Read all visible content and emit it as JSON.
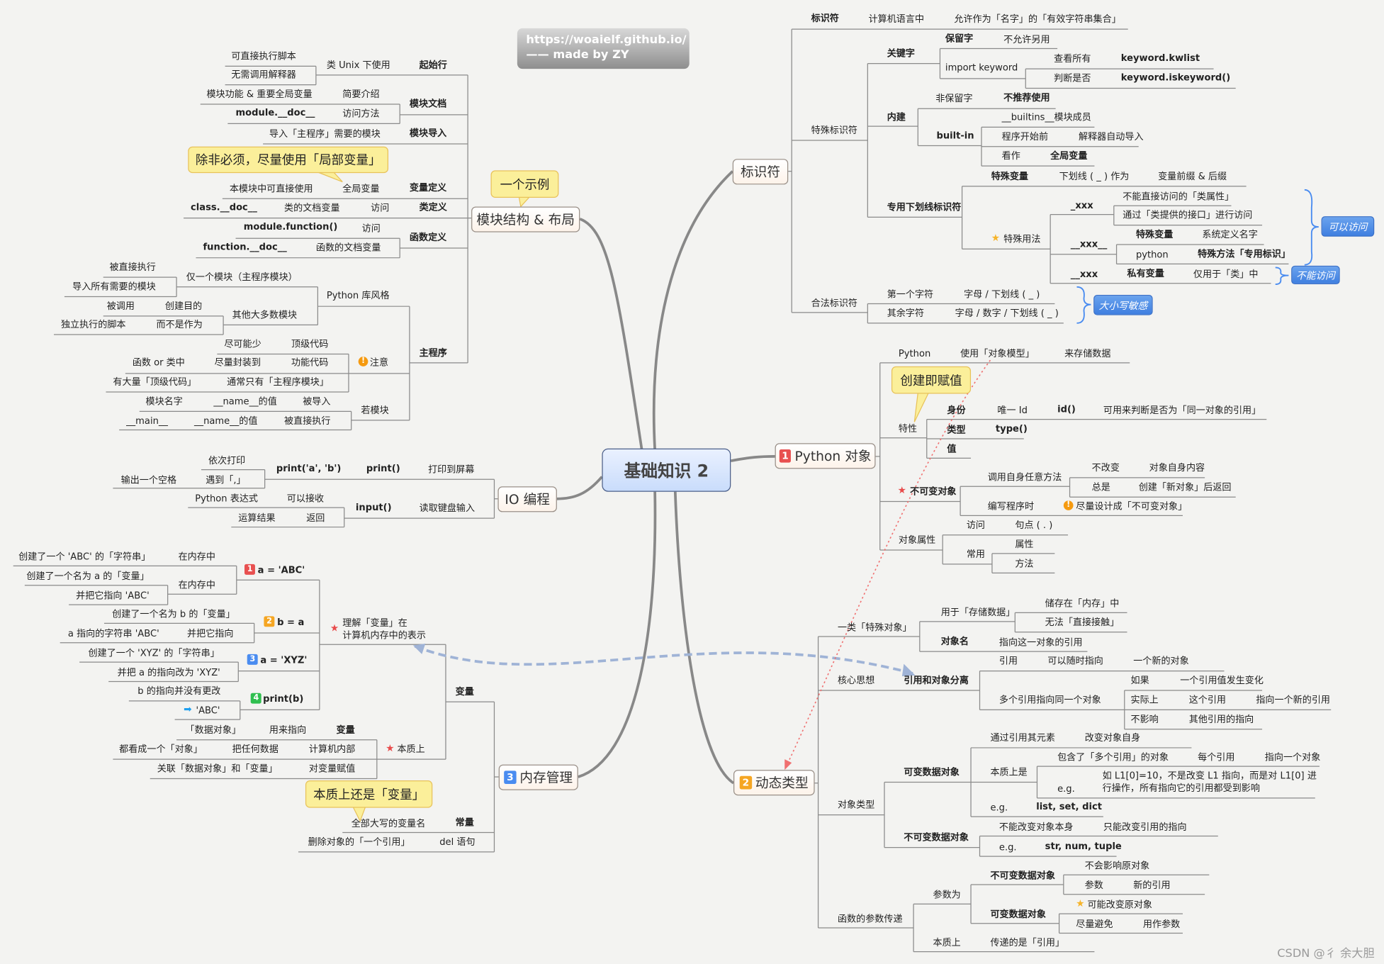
{
  "central": "基础知识 2",
  "banner": {
    "line1": "https://woaielf.github.io/",
    "line2": "—— made by ZY"
  },
  "watermark": "CSDN @彳 余大胆",
  "topics": {
    "modules": "模块结构 & 布局",
    "io": "IO 编程",
    "memory": "内存管理",
    "memory_badge": "3",
    "identifier": "标识符",
    "object": "Python 对象",
    "object_badge": "1",
    "dynamic": "动态类型",
    "dynamic_badge": "2"
  },
  "callouts": {
    "example": "一个示例",
    "local_var": "除非必须，尽量使用「局部变量」",
    "create_assign": "创建即赋值",
    "still_variable": "本质上还是「变量」"
  },
  "tags": {
    "accessible": "可以访问",
    "inaccessible": "不能访问",
    "case_sensitive": "大小写敏感"
  },
  "colors": {
    "central": "#c9dcfb",
    "callout": "#fbef9a",
    "tag": "#4a8cf0",
    "line": "#8a8a8a",
    "dashed_link": "#9fb3d6",
    "dotted_link": "#f07070"
  },
  "modules": {
    "texts": [
      "可直接执行脚本",
      "无需调用解释器",
      "类 Unix 下使用",
      "起始行",
      "模块功能 & 重要全局变量",
      "简要介绍",
      "module.__doc__",
      "访问方法",
      "模块文档",
      "导入「主程序」需要的模块",
      "模块导入",
      "本模块中可直接使用",
      "全局变量",
      "变量定义",
      "class.__doc__",
      "类的文档变量",
      "访问",
      "类定义",
      "module.function()",
      "访问",
      "function.__doc__",
      "函数的文档变量",
      "函数定义",
      "被直接执行",
      "导入所有需要的模块",
      "仅一个模块（主程序模块）",
      "被调用",
      "创建目的",
      "独立执行的脚本",
      "而不是作为",
      "其他大多数模块",
      "Python 库风格",
      "尽可能少",
      "顶级代码",
      "函数 or 类中",
      "尽量封装到",
      "功能代码",
      "注意",
      "有大量「顶级代码」",
      "通常只有「主程序模块」",
      "模块名字",
      "__name__的值",
      "被导入",
      "__main__",
      "__name__的值",
      "被直接执行",
      "若模块",
      "主程序"
    ]
  },
  "io": {
    "texts": [
      "依次打印",
      "输出一个空格",
      "遇到「,」",
      "print('a', 'b')",
      "print()",
      "打印到屏幕",
      "Python 表达式",
      "可以接收",
      "运算结果",
      "返回",
      "input()",
      "读取键盘输入"
    ]
  },
  "memory": {
    "texts": [
      "创建了一个 'ABC' 的「字符串」",
      "在内存中",
      "创建了一个名为 a 的「变量」",
      "在内存中",
      "并把它指向 'ABC'",
      "1",
      "a = 'ABC'",
      "创建了一个名为 b 的「变量」",
      "2",
      "b = a",
      "a 指向的字符串 'ABC'",
      "并把它指向",
      "创建了一个 'XYZ' 的「字符串」",
      "3",
      "a = 'XYZ'",
      "并把 a 的指向改为 'XYZ'",
      "b 的指向并没有更改",
      "4",
      "print(b)",
      "'ABC'",
      "理解「变量」在",
      "计算机内存中的表示",
      "「数据对象」",
      "用来指向",
      "变量",
      "都看成一个「对象」",
      "把任何数据",
      "计算机内部",
      "关联「数据对象」和「变量」",
      "对变量赋值",
      "本质上",
      "变量",
      "全部大写的变量名",
      "常量",
      "删除对象的「一个引用」",
      "del 语句"
    ]
  },
  "identifier": {
    "texts": [
      "标识符",
      "计算机语言中",
      "允许作为「名字」的「有效字符串集合」",
      "特殊标识符",
      "关键字",
      "保留字",
      "不允许另用",
      "import keyword",
      "查看所有",
      "keyword.kwlist",
      "判断是否",
      "keyword.iskeyword()",
      "内建",
      "非保留字",
      "不推荐使用",
      "built-in",
      "__builtins__模块成员",
      "程序开始前",
      "解释器自动导入",
      "看作",
      "全局变量",
      "专用下划线标识符",
      "特殊变量",
      "下划线 ( _ ) 作为",
      "变量前缀 & 后缀",
      "特殊用法",
      "_xxx",
      "不能直接访问的「类属性」",
      "通过「类提供的接口」进行访问",
      "__xxx__",
      "特殊变量",
      "系统定义名字",
      "python",
      "特殊方法「专用标识」",
      "__xxx",
      "私有变量",
      "仅用于「类」中",
      "合法标识符",
      "第一个字符",
      "字母 / 下划线 ( _ )",
      "其余字符",
      "字母 / 数字 / 下划线 ( _ )"
    ]
  },
  "object": {
    "texts": [
      "Python",
      "使用「对象模型」",
      "来存储数据",
      "特性",
      "身份",
      "唯一 Id",
      "id()",
      "可用来判断是否为「同一对象的引用」",
      "类型",
      "type()",
      "值",
      "不可变对象",
      "调用自身任意方法",
      "不改变",
      "对象自身内容",
      "总是",
      "创建「新对象」后返回",
      "编写程序时",
      "尽量设计成「不可变对象」",
      "对象属性",
      "访问",
      "句点 ( . )",
      "常用",
      "属性",
      "方法"
    ]
  },
  "dynamic": {
    "texts": [
      "一类「特殊对象」",
      "用于「存储数据」",
      "储存在「内存」中",
      "无法「直接接触」",
      "对象名",
      "指向这一对象的引用",
      "核心思想",
      "引用和对象分离",
      "引用",
      "可以随时指向",
      "一个新的对象",
      "多个引用指向同一个对象",
      "如果",
      "一个引用值发生变化",
      "实际上",
      "这个引用",
      "指向一个新的引用",
      "不影响",
      "其他引用的指向",
      "对象类型",
      "可变数据对象",
      "通过引用其元素",
      "改变对象自身",
      "本质上是",
      "包含了「多个引用」的对象",
      "每个引用",
      "指向一个对象",
      "e.g.",
      "如 L1[0]=10，不是改变 L1 指向，而是对 L1[0] 进",
      "行操作，所有指向它的引用都受到影响",
      "e.g.",
      "list, set, dict",
      "不可变数据对象",
      "不能改变对象本身",
      "只能改变引用的指向",
      "e.g.",
      "str, num, tuple",
      "函数的参数传递",
      "参数为",
      "不可变数据对象",
      "不会影响原对象",
      "参数",
      "新的引用",
      "可变数据对象",
      "可能改变原对象",
      "尽量避免",
      "用作参数",
      "本质上",
      "传递的是「引用」"
    ]
  }
}
